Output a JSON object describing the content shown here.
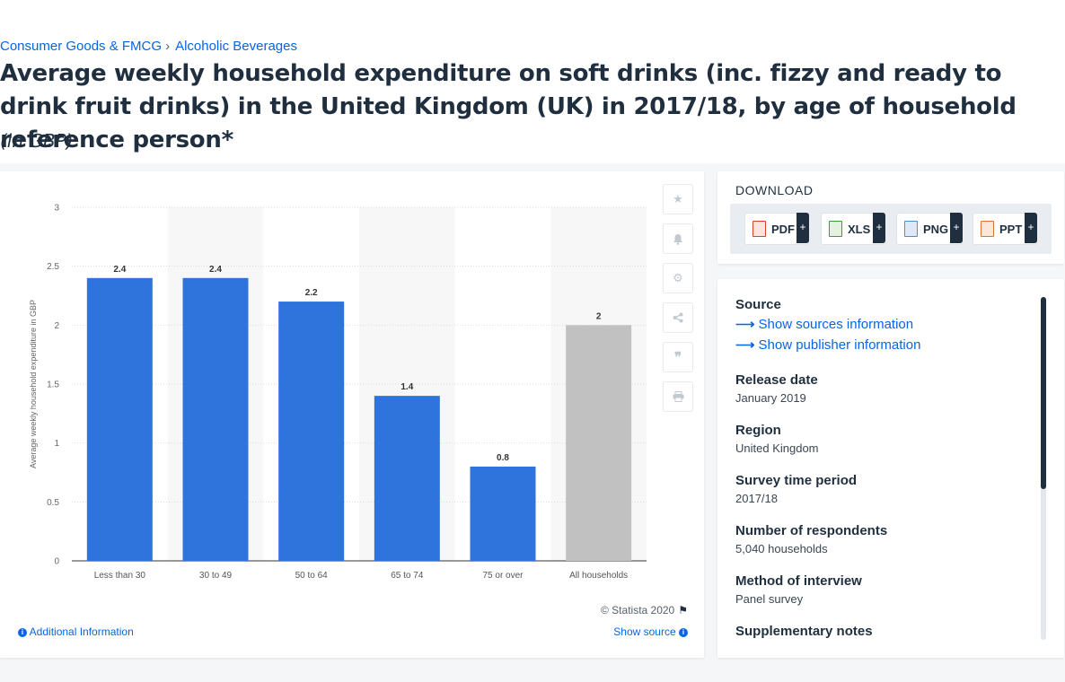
{
  "breadcrumb": {
    "items": [
      "Consumer Goods & FMCG",
      "Alcoholic Beverages"
    ],
    "separator": "›"
  },
  "title": "Average weekly household expenditure on soft drinks (inc. fizzy and ready to drink fruit drinks) in the United Kingdom (UK) in 2017/18, by age of household reference person*",
  "subtitle": "(in GBP)",
  "chart_data": {
    "type": "bar",
    "categories": [
      "Less than 30",
      "30 to 49",
      "50 to 64",
      "65 to 74",
      "75 or over",
      "All households"
    ],
    "values": [
      2.4,
      2.4,
      2.2,
      1.4,
      0.8,
      2
    ],
    "value_labels": [
      "2.4",
      "2.4",
      "2.2",
      "1.4",
      "0.8",
      "2"
    ],
    "colors": [
      "#2f73dc",
      "#2f73dc",
      "#2f73dc",
      "#2f73dc",
      "#2f73dc",
      "#c1c1c1"
    ],
    "ylabel": "Average weekly household expenditure in GBP",
    "xlabel": "",
    "ylim": [
      0,
      3
    ],
    "yticks": [
      0,
      0.5,
      1,
      1.5,
      2,
      2.5,
      3
    ],
    "ytick_labels": [
      "0",
      "0.5",
      "1",
      "1.5",
      "2",
      "2.5",
      "3"
    ],
    "grid": true,
    "legend": "none"
  },
  "chart_footer": {
    "copyright": "© Statista 2020",
    "additional_info": "Additional Information",
    "show_source": "Show source"
  },
  "tools": [
    "star-icon",
    "bell-icon",
    "gear-icon",
    "share-icon",
    "quote-icon",
    "print-icon"
  ],
  "download": {
    "title": "DOWNLOAD",
    "buttons": [
      {
        "label": "PDF",
        "color": "#d9412f"
      },
      {
        "label": "XLS",
        "color": "#3a9b3a"
      },
      {
        "label": "PNG",
        "color": "#4a8fd8"
      },
      {
        "label": "PPT",
        "color": "#e2742c"
      }
    ],
    "plus": "+"
  },
  "info": {
    "source_heading": "Source",
    "source_links": [
      "Show sources information",
      "Show publisher information"
    ],
    "release_date": {
      "label": "Release date",
      "value": "January 2019"
    },
    "region": {
      "label": "Region",
      "value": "United Kingdom"
    },
    "survey_period": {
      "label": "Survey time period",
      "value": "2017/18"
    },
    "respondents": {
      "label": "Number of respondents",
      "value": "5,040 households"
    },
    "method": {
      "label": "Method of interview",
      "value": "Panel survey"
    },
    "supplementary": {
      "label": "Supplementary notes"
    }
  },
  "colors": {
    "link": "#0666e5",
    "bar": "#2f73dc",
    "bar_total": "#c1c1c1",
    "text": "#1f2f3f"
  }
}
